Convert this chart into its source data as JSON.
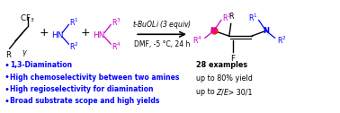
{
  "blue": "#0000ff",
  "magenta": "#cc00cc",
  "black": "#000000",
  "red": "#ff2200",
  "orange": "#cc4400",
  "bg": "#ffffff",
  "bullet_points": [
    "1,3-Diamination",
    "High chemoselectivity between two amines",
    "High regioselectivity for diamination",
    "Broad substrate scope and high yields"
  ],
  "summary": [
    "28 examples",
    "up to 80% yield",
    "up to  Z/E > 30/1"
  ]
}
